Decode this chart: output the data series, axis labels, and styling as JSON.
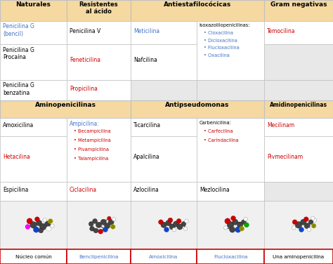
{
  "bg_color": "#f5f5f5",
  "header_bg": "#f5d9a0",
  "cell_bg_white": "#ffffff",
  "cell_bg_light": "#e8e8e8",
  "border_color_normal": "#c0c0c0",
  "border_color_red": "#cc0000",
  "text_black": "#000000",
  "text_blue": "#4472c4",
  "text_red": "#cc0000",
  "bottom_labels": [
    {
      "text": "Núcleo común",
      "color": "#000000"
    },
    {
      "text": "Bencilpenicilina",
      "color": "#4472c4"
    },
    {
      "text": "Amoxicilina",
      "color": "#4472c4"
    },
    {
      "text": "Flucloxacilina",
      "color": "#4472c4"
    },
    {
      "text": "Una aminopenicilina",
      "color": "#000000"
    }
  ],
  "figsize": [
    4.74,
    3.76
  ],
  "dpi": 100
}
